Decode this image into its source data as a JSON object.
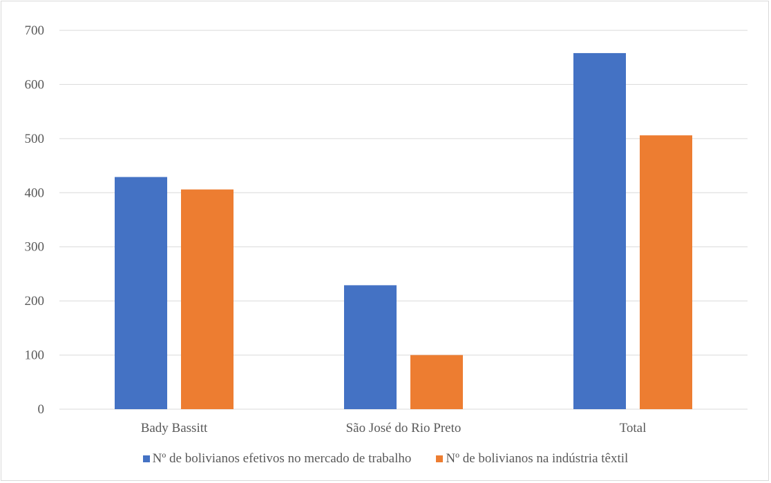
{
  "chart_data": {
    "type": "bar",
    "categories": [
      "Bady Bassitt",
      "São José do Rio Preto",
      "Total"
    ],
    "series": [
      {
        "name": "Nº de bolivianos efetivos no mercado de trabalho",
        "values": [
          429,
          229,
          658
        ],
        "color": "#4472c4"
      },
      {
        "name": "Nº de bolivianos na indústria têxtil",
        "values": [
          406,
          100,
          506
        ],
        "color": "#ed7d31"
      }
    ],
    "ylim": [
      0,
      700
    ],
    "yticks": [
      "0",
      "100",
      "200",
      "300",
      "400",
      "500",
      "600",
      "700"
    ],
    "grid": true,
    "legend_position": "bottom"
  }
}
